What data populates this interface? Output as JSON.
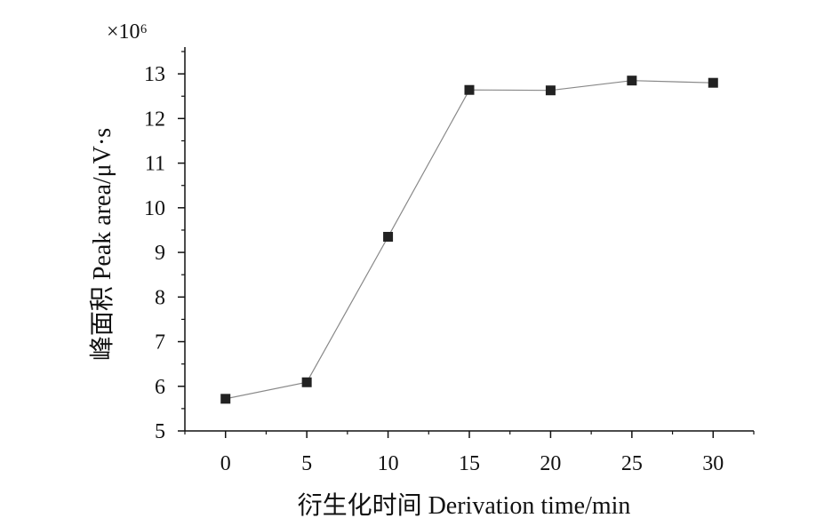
{
  "chart_data": {
    "type": "line",
    "title": "",
    "xlabel": "衍生化时间 Derivation time/min",
    "ylabel": "峰面积 Peak area/μV·s",
    "y_multiplier": "×10⁶",
    "x": [
      0,
      5,
      10,
      15,
      20,
      25,
      30
    ],
    "series": [
      {
        "name": "Peak area",
        "values": [
          5.72,
          6.09,
          9.35,
          12.64,
          12.63,
          12.85,
          12.8
        ]
      }
    ],
    "xlim": [
      -2.5,
      32.5
    ],
    "ylim": [
      5,
      13.6
    ],
    "x_ticks": [
      0,
      5,
      10,
      15,
      20,
      25,
      30
    ],
    "y_ticks": [
      5,
      6,
      7,
      8,
      9,
      10,
      11,
      12,
      13
    ],
    "grid": false,
    "legend": "none",
    "colors": {
      "line": "#888888",
      "marker": "#222222",
      "axis": "#111111"
    }
  }
}
